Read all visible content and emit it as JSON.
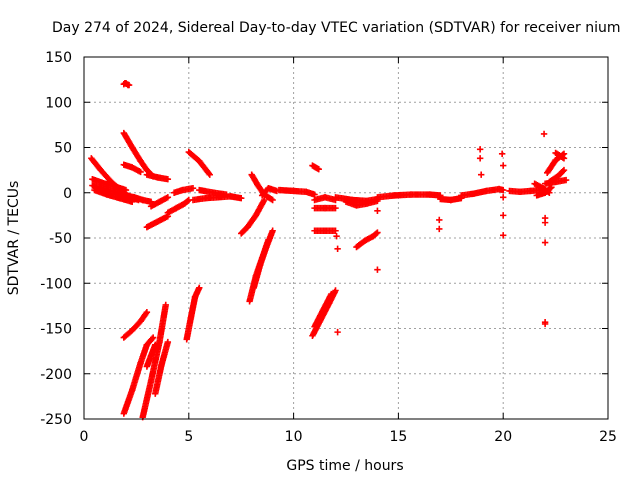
{
  "chart_data": {
    "type": "scatter",
    "title": "Day 274 of 2024, Sidereal Day-to-day VTEC variation (SDTVAR) for receiver nium",
    "xlabel": "GPS time / hours",
    "ylabel": "SDTVAR / TECUs",
    "xlim": [
      0,
      25
    ],
    "ylim": [
      -250,
      150
    ],
    "xticks": [
      0,
      5,
      10,
      15,
      20,
      25
    ],
    "yticks": [
      -250,
      -200,
      -150,
      -100,
      -50,
      0,
      50,
      100,
      150
    ],
    "grid": true,
    "marker": "+",
    "color": "#ff0000",
    "tracks": [
      {
        "x": [
          0.35,
          0.8,
          1.3,
          1.8,
          2.2
        ],
        "y": [
          38,
          25,
          12,
          2,
          -5
        ]
      },
      {
        "x": [
          0.4,
          1.0,
          1.6,
          2.0
        ],
        "y": [
          15,
          10,
          6,
          3
        ]
      },
      {
        "x": [
          0.4,
          1.0,
          1.6,
          2.2,
          2.6
        ],
        "y": [
          8,
          4,
          0,
          -5,
          -8
        ]
      },
      {
        "x": [
          0.5,
          1.1,
          1.7,
          2.3
        ],
        "y": [
          3,
          -2,
          -6,
          -10
        ]
      },
      {
        "x": [
          1.9,
          2.3,
          2.7,
          3.0,
          3.3
        ],
        "y": [
          66,
          50,
          35,
          25,
          18
        ]
      },
      {
        "x": [
          1.95,
          2.15
        ],
        "y": [
          121,
          119
        ]
      },
      {
        "x": [
          1.9,
          2.3,
          2.7
        ],
        "y": [
          31,
          28,
          23
        ]
      },
      {
        "x": [
          3.0,
          3.5,
          4.0
        ],
        "y": [
          20,
          17,
          15
        ]
      },
      {
        "x": [
          2.0,
          2.4,
          2.8,
          3.2
        ],
        "y": [
          -3,
          -5,
          -8,
          -10
        ]
      },
      {
        "x": [
          3.0,
          3.5,
          4.0
        ],
        "y": [
          -38,
          -32,
          -26
        ]
      },
      {
        "x": [
          3.2,
          3.6,
          4.0
        ],
        "y": [
          -15,
          -10,
          -5
        ]
      },
      {
        "x": [
          4.0,
          4.4,
          4.8,
          5.0
        ],
        "y": [
          -22,
          -17,
          -12,
          -8
        ]
      },
      {
        "x": [
          4.3,
          4.7,
          5.2
        ],
        "y": [
          0,
          3,
          5
        ]
      },
      {
        "x": [
          5.0,
          5.5,
          6.0
        ],
        "y": [
          45,
          35,
          20
        ]
      },
      {
        "x": [
          5.2,
          5.8,
          6.4,
          7.0,
          7.5
        ],
        "y": [
          -8,
          -6,
          -5,
          -4,
          -6
        ]
      },
      {
        "x": [
          5.5,
          6.2,
          6.8
        ],
        "y": [
          3,
          0,
          -2
        ]
      },
      {
        "x": [
          1.9,
          2.3,
          2.7,
          3.0
        ],
        "y": [
          -160,
          -152,
          -142,
          -132
        ]
      },
      {
        "x": [
          1.9,
          2.3,
          2.7,
          3.0,
          3.3
        ],
        "y": [
          -244,
          -218,
          -188,
          -168,
          -160
        ]
      },
      {
        "x": [
          2.8,
          3.2,
          3.6,
          3.9
        ],
        "y": [
          -248,
          -208,
          -165,
          -124
        ]
      },
      {
        "x": [
          3.0,
          3.2,
          3.4
        ],
        "y": [
          -192,
          -180,
          -168
        ]
      },
      {
        "x": [
          3.4,
          3.7,
          4.0
        ],
        "y": [
          -222,
          -190,
          -165
        ]
      },
      {
        "x": [
          4.9,
          5.1,
          5.3,
          5.5
        ],
        "y": [
          -162,
          -138,
          -115,
          -105
        ]
      },
      {
        "x": [
          7.5,
          7.8,
          8.2,
          8.6
        ],
        "y": [
          -45,
          -38,
          -25,
          -8
        ]
      },
      {
        "x": [
          8.0,
          8.3,
          8.6,
          9.0
        ],
        "y": [
          20,
          8,
          -2,
          -8
        ]
      },
      {
        "x": [
          8.5,
          8.8,
          9.2
        ],
        "y": [
          -3,
          5,
          2
        ]
      },
      {
        "x": [
          7.9,
          8.2,
          8.5,
          8.8
        ],
        "y": [
          -120,
          -92,
          -72,
          -52
        ]
      },
      {
        "x": [
          8.1,
          8.4,
          8.7,
          9.0
        ],
        "y": [
          -105,
          -80,
          -60,
          -42
        ]
      },
      {
        "x": [
          9.3,
          10.0,
          10.6,
          11.0
        ],
        "y": [
          3,
          2,
          1,
          -2
        ]
      },
      {
        "x": [
          10.9,
          11.2
        ],
        "y": [
          30,
          26
        ]
      },
      {
        "x": [
          11.0,
          11.5,
          12.0
        ],
        "y": [
          -8,
          -5,
          -8
        ]
      },
      {
        "x": [
          11.0,
          11.5,
          12.0
        ],
        "y": [
          -17,
          -17,
          -17
        ]
      },
      {
        "x": [
          11.0,
          11.5,
          12.0
        ],
        "y": [
          -42,
          -42,
          -42
        ]
      },
      {
        "x": [
          10.9,
          11.3,
          11.7,
          12.0
        ],
        "y": [
          -158,
          -140,
          -122,
          -108
        ]
      },
      {
        "x": [
          11.0,
          11.4,
          11.8
        ],
        "y": [
          -148,
          -130,
          -112
        ]
      },
      {
        "x": [
          12.0,
          12.8,
          13.5,
          14.0
        ],
        "y": [
          -5,
          -8,
          -9,
          -7
        ]
      },
      {
        "x": [
          13.0,
          13.4,
          13.8,
          14.0
        ],
        "y": [
          -60,
          -53,
          -48,
          -44
        ]
      },
      {
        "x": [
          12.5,
          13.0,
          13.5,
          14.0
        ],
        "y": [
          -10,
          -14,
          -12,
          -9
        ]
      },
      {
        "x": [
          14.0,
          14.8,
          15.6,
          16.5,
          17.0
        ],
        "y": [
          -5,
          -3,
          -2,
          -2,
          -3
        ]
      },
      {
        "x": [
          17.0,
          17.5,
          18.0
        ],
        "y": [
          -7,
          -8,
          -6
        ]
      },
      {
        "x": [
          18.0,
          18.6,
          19.2,
          19.8,
          20.0
        ],
        "y": [
          -3,
          -1,
          2,
          4,
          3
        ]
      },
      {
        "x": [
          20.3,
          20.8,
          21.3,
          21.8
        ],
        "y": [
          2,
          1,
          2,
          3
        ]
      },
      {
        "x": [
          21.5,
          21.9,
          22.2
        ],
        "y": [
          10,
          5,
          0
        ]
      },
      {
        "x": [
          21.6,
          22.0,
          22.3
        ],
        "y": [
          -3,
          0,
          6
        ]
      },
      {
        "x": [
          22.2,
          22.6,
          22.9
        ],
        "y": [
          12,
          18,
          25
        ]
      },
      {
        "x": [
          22.1,
          22.5,
          22.9
        ],
        "y": [
          22,
          36,
          43
        ]
      },
      {
        "x": [
          22.5,
          22.9
        ],
        "y": [
          44,
          38
        ]
      },
      {
        "x": [
          22.0,
          22.5,
          23.0
        ],
        "y": [
          10,
          12,
          14
        ]
      }
    ],
    "isolated_points": {
      "x": [
        1.9,
        2.0,
        2.1,
        12.05,
        12.1,
        12.1,
        14.0,
        14.0,
        16.95,
        16.95,
        18.9,
        18.9,
        18.95,
        19.95,
        20.0,
        20.0,
        20.0,
        20.0,
        21.95,
        22.0,
        22.0,
        22.0,
        22.0,
        22.0
      ],
      "y": [
        120,
        121,
        119,
        -48,
        -62,
        -154,
        -20,
        -85,
        -30,
        -40,
        48,
        38,
        20,
        43,
        30,
        -25,
        -47,
        -5,
        65,
        -28,
        -33,
        -55,
        -143,
        -145
      ]
    }
  }
}
